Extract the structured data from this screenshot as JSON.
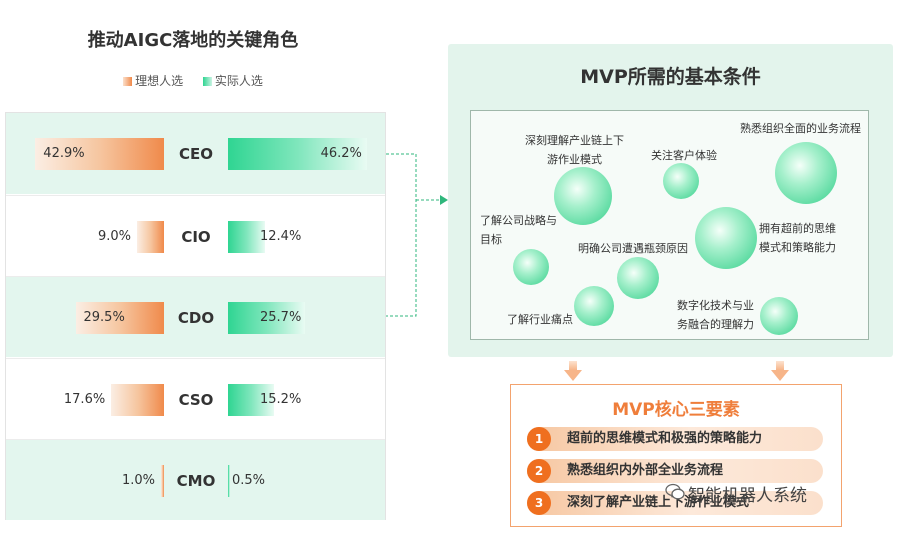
{
  "left": {
    "title": "推动AIGC落地的关键角色",
    "legend": {
      "ideal": "理想人选",
      "actual": "实际人选"
    }
  },
  "chart_data": [
    {
      "type": "bar",
      "title": "推动AIGC落地的关键角色",
      "orientation": "horizontal-diverging",
      "categories": [
        "CEO",
        "CIO",
        "CDO",
        "CSO",
        "CMO"
      ],
      "series": [
        {
          "name": "理想人选",
          "values": [
            42.9,
            9.0,
            29.5,
            17.6,
            1.0
          ],
          "labels": [
            "42.9%",
            "9.0%",
            "29.5%",
            "17.6%",
            "1.0%"
          ]
        },
        {
          "name": "实际人选",
          "values": [
            46.2,
            12.4,
            25.7,
            15.2,
            0.5
          ],
          "labels": [
            "46.2%",
            "12.4%",
            "25.7%",
            "15.2%",
            "0.5%"
          ]
        }
      ],
      "colors": {
        "ideal": "#f08a4b",
        "actual": "#2fd592"
      },
      "legend": "top-center"
    }
  ],
  "mvp": {
    "title": "MVP所需的基本条件",
    "bubbles": [
      {
        "text": [
          "深刻理解产业链上下",
          "游作业模式"
        ],
        "size": 1.0
      },
      {
        "text": [
          "关注客户体验"
        ],
        "size": 0.6
      },
      {
        "text": [
          "熟悉组织全面的业务流程"
        ],
        "size": 1.05
      },
      {
        "text": [
          "了解公司战略与",
          "目标"
        ],
        "size": 0.62
      },
      {
        "text": [
          "明确公司遭遇瓶颈原因"
        ],
        "size": 0.72
      },
      {
        "text": [
          "拥有超前的思维",
          "模式和策略能力"
        ],
        "size": 1.05
      },
      {
        "text": [
          "了解行业痛点"
        ],
        "size": 0.68
      },
      {
        "text": [
          "数字化技术与业",
          "务融合的理解力"
        ],
        "size": 0.68
      }
    ]
  },
  "core": {
    "title": "MVP核心三要素",
    "items": [
      {
        "num": "1",
        "text": "超前的思维模式和极强的策略能力"
      },
      {
        "num": "2",
        "text": "熟悉组织内外部全业务流程"
      },
      {
        "num": "3",
        "text": "深刻了解产业链上下游作业模式"
      }
    ]
  },
  "watermark": "智能机器人系统"
}
